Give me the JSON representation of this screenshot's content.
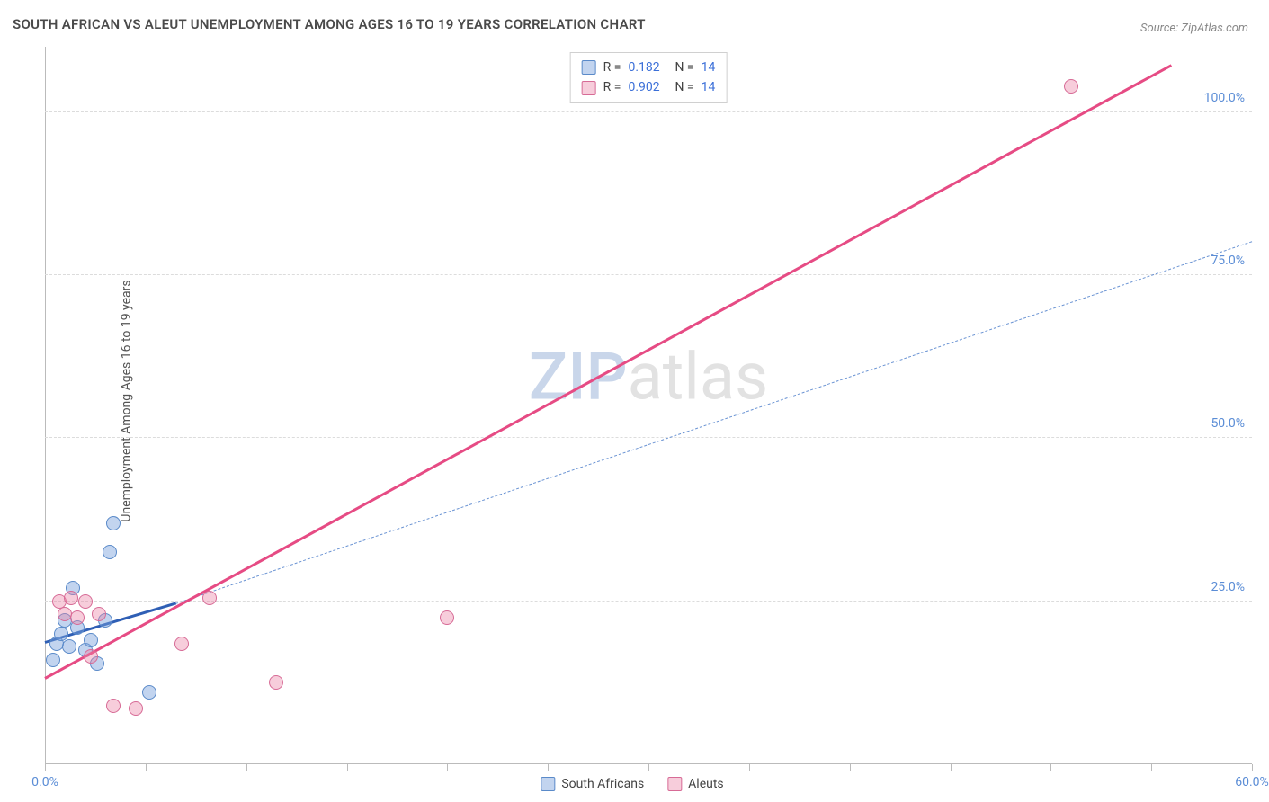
{
  "title": "SOUTH AFRICAN VS ALEUT UNEMPLOYMENT AMONG AGES 16 TO 19 YEARS CORRELATION CHART",
  "source": "Source: ZipAtlas.com",
  "y_axis_label": "Unemployment Among Ages 16 to 19 years",
  "watermark": {
    "part1": "ZIP",
    "part2": "atlas"
  },
  "chart": {
    "type": "scatter",
    "background_color": "#ffffff",
    "grid_color": "#dcdcdc",
    "axis_color": "#bbbbbb",
    "tick_label_color": "#5b8dd6",
    "tick_fontsize": 14,
    "xlim": [
      0,
      60
    ],
    "ylim": [
      0,
      110
    ],
    "y_ticks": [
      25,
      50,
      75,
      100
    ],
    "y_tick_labels": [
      "25.0%",
      "50.0%",
      "75.0%",
      "100.0%"
    ],
    "x_ticks": [
      0,
      5,
      10,
      15,
      20,
      25,
      30,
      35,
      40,
      45,
      50,
      55,
      60
    ],
    "x_tick_labels": {
      "0": "0.0%",
      "60": "60.0%"
    },
    "point_radius": 8,
    "series": [
      {
        "name": "South Africans",
        "fill": "rgba(120,160,220,0.45)",
        "stroke": "#5a8ac9",
        "trend": {
          "x1": 0,
          "y1": 18.5,
          "x2": 6.5,
          "y2": 24.5,
          "stroke": "#2f5fb5",
          "width": 3,
          "dash": false
        },
        "extrapolate": {
          "x1": 6.5,
          "y1": 24.5,
          "x2": 60,
          "y2": 80,
          "stroke": "#6a93d3",
          "width": 1.3,
          "dash": true
        },
        "points": [
          {
            "x": 0.4,
            "y": 16
          },
          {
            "x": 0.6,
            "y": 18.5
          },
          {
            "x": 0.8,
            "y": 20
          },
          {
            "x": 1.0,
            "y": 22
          },
          {
            "x": 1.2,
            "y": 18
          },
          {
            "x": 1.4,
            "y": 27
          },
          {
            "x": 1.6,
            "y": 21
          },
          {
            "x": 2.0,
            "y": 17.5
          },
          {
            "x": 2.3,
            "y": 19
          },
          {
            "x": 2.6,
            "y": 15.5
          },
          {
            "x": 3.0,
            "y": 22
          },
          {
            "x": 3.2,
            "y": 32.5
          },
          {
            "x": 3.4,
            "y": 37
          },
          {
            "x": 5.2,
            "y": 11
          }
        ]
      },
      {
        "name": "Aleuts",
        "fill": "rgba(235,130,165,0.40)",
        "stroke": "#d76b96",
        "trend": {
          "x1": 0,
          "y1": 13,
          "x2": 56,
          "y2": 107,
          "stroke": "#e64b84",
          "width": 3,
          "dash": false
        },
        "points": [
          {
            "x": 0.7,
            "y": 25
          },
          {
            "x": 1.0,
            "y": 23
          },
          {
            "x": 1.3,
            "y": 25.5
          },
          {
            "x": 1.6,
            "y": 22.5
          },
          {
            "x": 2.0,
            "y": 25
          },
          {
            "x": 2.3,
            "y": 16.5
          },
          {
            "x": 2.7,
            "y": 23
          },
          {
            "x": 3.4,
            "y": 9
          },
          {
            "x": 4.5,
            "y": 8.5
          },
          {
            "x": 6.8,
            "y": 18.5
          },
          {
            "x": 8.2,
            "y": 25.5
          },
          {
            "x": 11.5,
            "y": 12.5
          },
          {
            "x": 20,
            "y": 22.5
          },
          {
            "x": 51,
            "y": 104
          }
        ]
      }
    ],
    "r_legend": [
      {
        "swatch_fill": "rgba(120,160,220,0.45)",
        "swatch_stroke": "#5a8ac9",
        "r": "0.182",
        "n": "14"
      },
      {
        "swatch_fill": "rgba(235,130,165,0.40)",
        "swatch_stroke": "#d76b96",
        "r": "0.902",
        "n": "14"
      }
    ],
    "bottom_legend": [
      {
        "label": "South Africans",
        "swatch_fill": "rgba(120,160,220,0.45)",
        "swatch_stroke": "#5a8ac9"
      },
      {
        "label": "Aleuts",
        "swatch_fill": "rgba(235,130,165,0.40)",
        "swatch_stroke": "#d76b96"
      }
    ]
  }
}
